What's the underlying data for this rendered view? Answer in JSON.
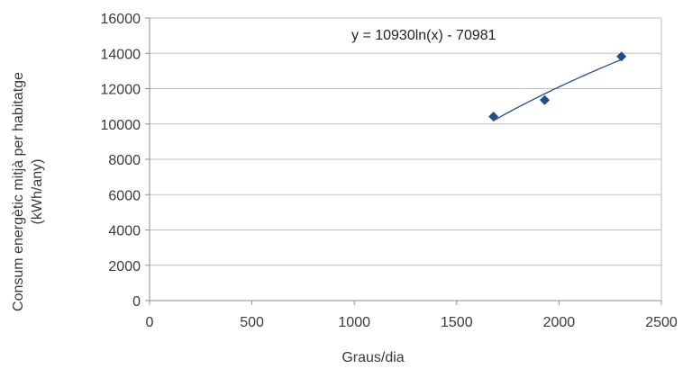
{
  "chart_data": {
    "type": "scatter",
    "x": [
      1680,
      1930,
      2305
    ],
    "y": [
      10420,
      11350,
      13820
    ],
    "xlim": [
      0,
      2500
    ],
    "ylim": [
      0,
      16000
    ],
    "xticks": [
      0,
      500,
      1000,
      1500,
      2000,
      2500
    ],
    "yticks": [
      0,
      2000,
      4000,
      6000,
      8000,
      10000,
      12000,
      14000,
      16000
    ],
    "xlabel": "Graus/dia",
    "ylabel_line1": "Consum energètic mitjà  per habitatge",
    "ylabel_line2": "(kWh/any)",
    "grid": "horizontal",
    "trendline": {
      "type": "logarithmic",
      "a": 10930,
      "b": -70981,
      "x_range": [
        1680,
        2305
      ],
      "equation": "y = 10930ln(x) - 70981"
    },
    "colors": {
      "marker": "#1f4e8c",
      "trendline": "#1f4e8c",
      "grid": "#bfbfbf",
      "text": "#3a3a3a"
    }
  }
}
